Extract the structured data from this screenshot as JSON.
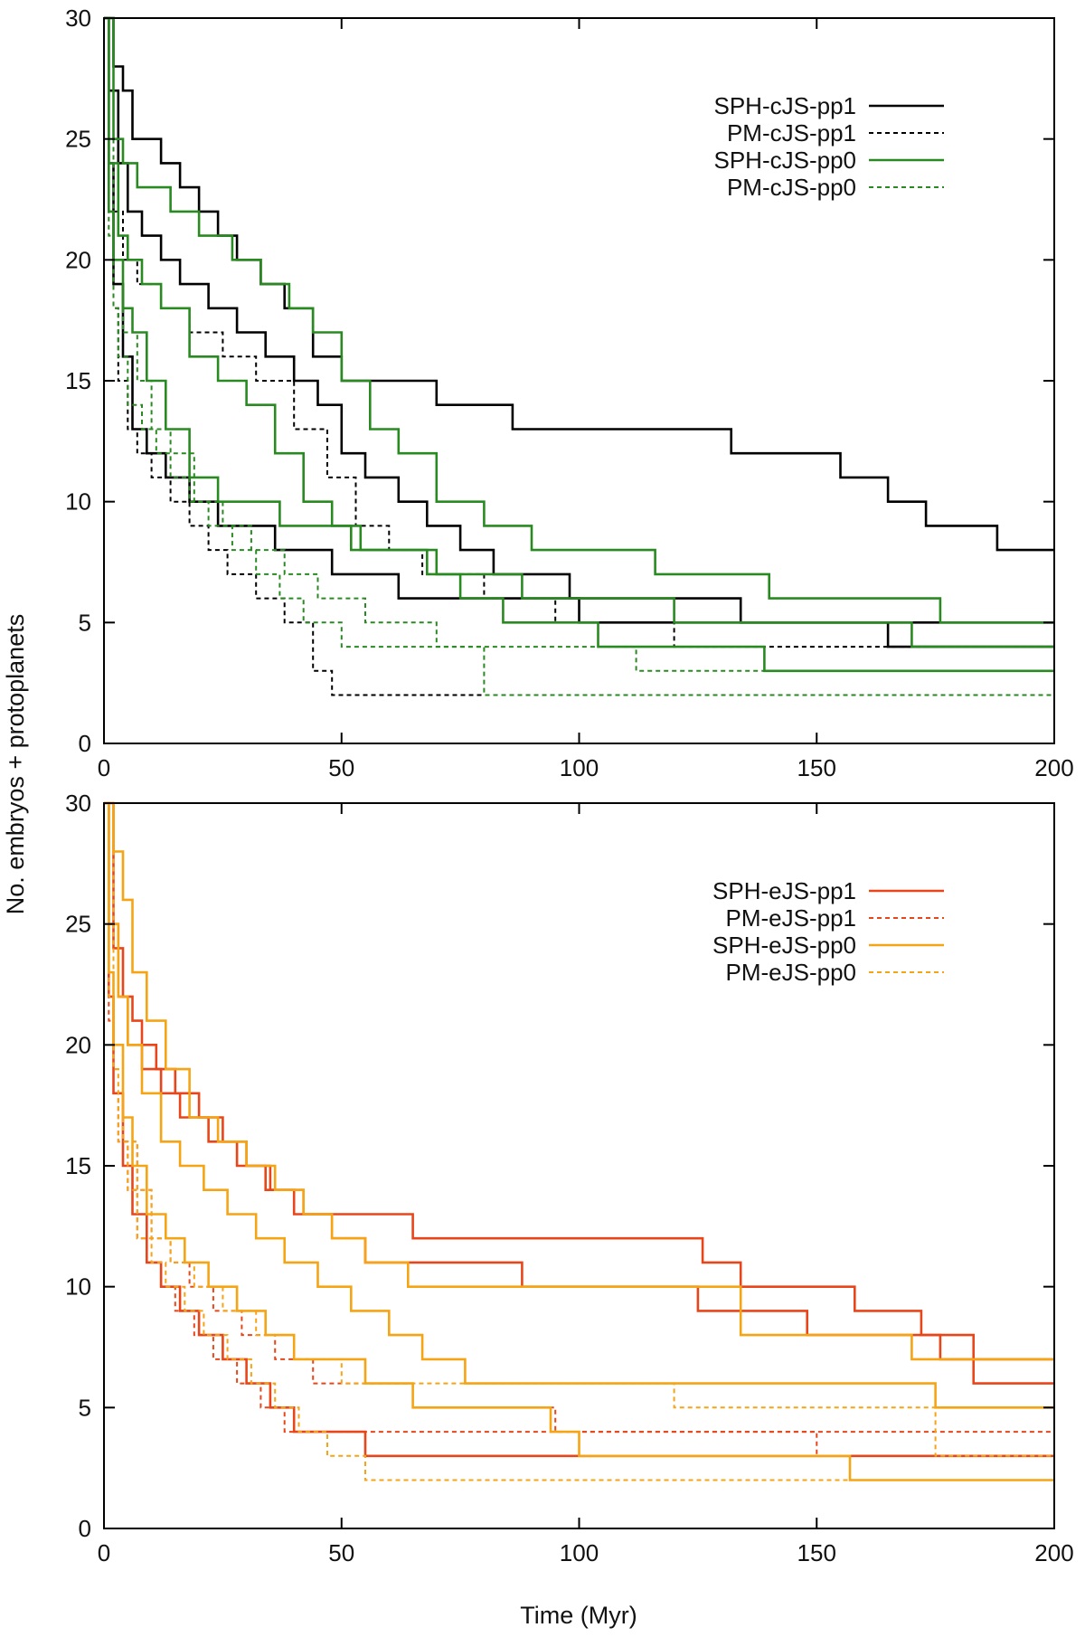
{
  "figure": {
    "ylabel": "No. embryos + protoplanets",
    "xlabel": "Time (Myr)"
  },
  "chart_data": [
    {
      "type": "line",
      "title": "",
      "xlabel": "",
      "ylabel": "No. embryos + protoplanets",
      "xlim": [
        0,
        200
      ],
      "ylim": [
        0,
        30
      ],
      "xticks": [
        0,
        50,
        100,
        150,
        200
      ],
      "yticks": [
        0,
        5,
        10,
        15,
        20,
        25,
        30
      ],
      "grid": false,
      "legend_position": "top-right",
      "legend": [
        {
          "label": "SPH-cJS-pp1",
          "color": "#000000",
          "dashed": false
        },
        {
          "label": "PM-cJS-pp1",
          "color": "#000000",
          "dashed": true
        },
        {
          "label": "SPH-cJS-pp0",
          "color": "#2a8a22",
          "dashed": false
        },
        {
          "label": "PM-cJS-pp0",
          "color": "#2a8a22",
          "dashed": true
        }
      ],
      "series": [
        {
          "name": "SPH-cJS-pp1",
          "color": "#000000",
          "dashed": false,
          "x": [
            0,
            2,
            4,
            6,
            12,
            16,
            20,
            24,
            28,
            33,
            38,
            44,
            50,
            55,
            60,
            70,
            86,
            100,
            120,
            132,
            145,
            155,
            165,
            173,
            180,
            188,
            200
          ],
          "y": [
            30,
            28,
            27,
            25,
            24,
            23,
            22,
            21,
            20,
            19,
            18,
            16,
            15,
            15,
            15,
            14,
            13,
            13,
            13,
            12,
            12,
            11,
            10,
            9,
            9,
            8,
            8
          ]
        },
        {
          "name": "SPH-cJS-pp1",
          "color": "#000000",
          "dashed": false,
          "x": [
            0,
            1,
            3,
            5,
            8,
            12,
            16,
            22,
            28,
            34,
            40,
            45,
            50,
            55,
            62,
            68,
            75,
            82,
            98,
            110,
            120,
            134,
            140,
            150,
            165,
            175,
            186,
            200
          ],
          "y": [
            30,
            27,
            24,
            22,
            21,
            20,
            19,
            18,
            17,
            16,
            15,
            14,
            12,
            11,
            10,
            9,
            8,
            7,
            6,
            6,
            6,
            5,
            5,
            5,
            4,
            4,
            4,
            4
          ]
        },
        {
          "name": "SPH-cJS-pp1",
          "color": "#000000",
          "dashed": false,
          "x": [
            0,
            1,
            2,
            4,
            6,
            9,
            13,
            18,
            24,
            30,
            36,
            42,
            48,
            55,
            62,
            68,
            75,
            88,
            100,
            115,
            120,
            135,
            160,
            180,
            200
          ],
          "y": [
            30,
            24,
            19,
            16,
            13,
            12,
            11,
            10,
            9,
            9,
            8,
            8,
            7,
            7,
            6,
            6,
            6,
            6,
            5,
            5,
            5,
            5,
            5,
            5,
            5
          ]
        },
        {
          "name": "PM-cJS-pp1",
          "color": "#000000",
          "dashed": true,
          "x": [
            0,
            1,
            2,
            3,
            5,
            7,
            10,
            14,
            18,
            22,
            26,
            32,
            38,
            44,
            48,
            55,
            60,
            70,
            80,
            100,
            120,
            140,
            160,
            200
          ],
          "y": [
            30,
            22,
            18,
            15,
            13,
            12,
            11,
            10,
            9,
            8,
            7,
            6,
            5,
            3,
            2,
            2,
            2,
            2,
            2,
            2,
            2,
            2,
            2,
            2
          ]
        },
        {
          "name": "PM-cJS-pp1",
          "color": "#000000",
          "dashed": true,
          "x": [
            0,
            2,
            4,
            7,
            12,
            18,
            25,
            32,
            40,
            47,
            53,
            60,
            67,
            80,
            95,
            110,
            120,
            150,
            187,
            200
          ],
          "y": [
            30,
            22,
            20,
            19,
            18,
            17,
            16,
            15,
            13,
            11,
            9,
            8,
            7,
            6,
            5,
            5,
            4,
            4,
            4,
            4
          ]
        },
        {
          "name": "SPH-cJS-pp0",
          "color": "#2a8a22",
          "dashed": false,
          "x": [
            0,
            2,
            4,
            7,
            10,
            14,
            20,
            27,
            33,
            39,
            44,
            50,
            56,
            62,
            70,
            80,
            90,
            100,
            116,
            140,
            176,
            200
          ],
          "y": [
            30,
            25,
            24,
            23,
            23,
            22,
            21,
            20,
            19,
            18,
            17,
            15,
            13,
            12,
            10,
            9,
            8,
            8,
            7,
            6,
            5,
            5
          ]
        },
        {
          "name": "SPH-cJS-pp0",
          "color": "#2a8a22",
          "dashed": false,
          "x": [
            0,
            1,
            3,
            5,
            8,
            12,
            18,
            24,
            30,
            36,
            42,
            48,
            54,
            62,
            70,
            78,
            88,
            100,
            120,
            133,
            148,
            170,
            182,
            200
          ],
          "y": [
            30,
            24,
            21,
            20,
            19,
            18,
            16,
            15,
            14,
            12,
            10,
            9,
            8,
            8,
            7,
            7,
            6,
            6,
            5,
            5,
            5,
            4,
            4,
            4
          ]
        },
        {
          "name": "SPH-cJS-pp0",
          "color": "#2a8a22",
          "dashed": false,
          "x": [
            0,
            1,
            2,
            4,
            6,
            9,
            13,
            18,
            24,
            30,
            37,
            45,
            52,
            60,
            68,
            75,
            84,
            104,
            120,
            139,
            160,
            185,
            200
          ],
          "y": [
            30,
            22,
            20,
            18,
            17,
            15,
            13,
            11,
            10,
            10,
            9,
            9,
            8,
            8,
            7,
            6,
            5,
            4,
            4,
            3,
            3,
            3,
            3
          ]
        },
        {
          "name": "PM-cJS-pp0",
          "color": "#2a8a22",
          "dashed": true,
          "x": [
            0,
            1,
            2,
            3,
            5,
            8,
            11,
            14,
            18,
            22,
            27,
            32,
            37,
            42,
            50,
            60,
            72,
            80,
            100,
            120,
            160,
            200
          ],
          "y": [
            30,
            21,
            18,
            16,
            14,
            13,
            12,
            11,
            10,
            9,
            8,
            7,
            6,
            5,
            4,
            4,
            4,
            2,
            2,
            2,
            2,
            2
          ]
        },
        {
          "name": "PM-cJS-pp0",
          "color": "#2a8a22",
          "dashed": true,
          "x": [
            0,
            2,
            4,
            7,
            10,
            14,
            19,
            25,
            31,
            38,
            45,
            55,
            70,
            90,
            112,
            140,
            170,
            200
          ],
          "y": [
            30,
            20,
            17,
            15,
            13,
            12,
            10,
            9,
            8,
            7,
            6,
            5,
            4,
            4,
            3,
            3,
            3,
            3
          ]
        }
      ]
    },
    {
      "type": "line",
      "title": "",
      "xlabel": "Time (Myr)",
      "ylabel": "No. embryos + protoplanets",
      "xlim": [
        0,
        200
      ],
      "ylim": [
        0,
        30
      ],
      "xticks": [
        0,
        50,
        100,
        150,
        200
      ],
      "yticks": [
        0,
        5,
        10,
        15,
        20,
        25,
        30
      ],
      "grid": false,
      "legend_position": "top-right",
      "legend": [
        {
          "label": "SPH-eJS-pp1",
          "color": "#e8461a",
          "dashed": false
        },
        {
          "label": "PM-eJS-pp1",
          "color": "#e8461a",
          "dashed": true
        },
        {
          "label": "SPH-eJS-pp0",
          "color": "#f5a414",
          "dashed": false
        },
        {
          "label": "PM-eJS-pp0",
          "color": "#f5a414",
          "dashed": true
        }
      ],
      "series": [
        {
          "name": "SPH-eJS-pp1",
          "color": "#e8461a",
          "dashed": false,
          "x": [
            0,
            2,
            4,
            6,
            8,
            11,
            15,
            20,
            25,
            30,
            35,
            42,
            52,
            65,
            75,
            95,
            110,
            126,
            134,
            158,
            172,
            183,
            200
          ],
          "y": [
            30,
            24,
            22,
            21,
            20,
            19,
            18,
            17,
            16,
            15,
            14,
            13,
            13,
            12,
            12,
            12,
            12,
            11,
            10,
            9,
            8,
            6,
            6
          ]
        },
        {
          "name": "SPH-eJS-pp1",
          "color": "#e8461a",
          "dashed": false,
          "x": [
            0,
            1,
            3,
            5,
            8,
            12,
            16,
            22,
            28,
            34,
            40,
            48,
            55,
            62,
            70,
            88,
            100,
            118,
            125,
            148,
            176,
            200
          ],
          "y": [
            30,
            25,
            22,
            20,
            19,
            18,
            17,
            16,
            15,
            14,
            13,
            12,
            11,
            11,
            11,
            10,
            10,
            10,
            9,
            8,
            7,
            7
          ]
        },
        {
          "name": "SPH-eJS-pp1",
          "color": "#e8461a",
          "dashed": false,
          "x": [
            0,
            1,
            2,
            4,
            6,
            9,
            12,
            16,
            20,
            25,
            30,
            35,
            40,
            48,
            55,
            65,
            75,
            95,
            128,
            148,
            170,
            200
          ],
          "y": [
            30,
            22,
            18,
            15,
            13,
            11,
            10,
            9,
            8,
            7,
            6,
            5,
            4,
            4,
            3,
            3,
            3,
            3,
            3,
            3,
            3,
            3
          ]
        },
        {
          "name": "PM-eJS-pp1",
          "color": "#e8461a",
          "dashed": true,
          "x": [
            0,
            1,
            2,
            3,
            5,
            7,
            9,
            12,
            15,
            19,
            23,
            28,
            33,
            38,
            44,
            52,
            62,
            80,
            100,
            130,
            160,
            200
          ],
          "y": [
            30,
            21,
            18,
            16,
            14,
            12,
            11,
            10,
            9,
            8,
            7,
            6,
            5,
            4,
            4,
            4,
            4,
            4,
            4,
            4,
            4,
            4
          ]
        },
        {
          "name": "PM-eJS-pp1",
          "color": "#e8461a",
          "dashed": true,
          "x": [
            0,
            2,
            4,
            7,
            10,
            14,
            18,
            23,
            29,
            36,
            44,
            55,
            65,
            80,
            95,
            120,
            150,
            185,
            200
          ],
          "y": [
            30,
            20,
            16,
            14,
            12,
            11,
            10,
            9,
            8,
            7,
            6,
            6,
            5,
            5,
            4,
            4,
            3,
            3,
            3
          ]
        },
        {
          "name": "SPH-eJS-pp0",
          "color": "#f5a414",
          "dashed": false,
          "x": [
            0,
            2,
            4,
            6,
            9,
            13,
            18,
            24,
            30,
            36,
            42,
            48,
            55,
            64,
            72,
            84,
            100,
            120,
            134,
            150,
            170,
            200
          ],
          "y": [
            30,
            28,
            26,
            23,
            21,
            19,
            17,
            16,
            15,
            14,
            13,
            12,
            11,
            10,
            10,
            10,
            10,
            10,
            8,
            8,
            7,
            7
          ]
        },
        {
          "name": "SPH-eJS-pp0",
          "color": "#f5a414",
          "dashed": false,
          "x": [
            0,
            1,
            3,
            5,
            8,
            12,
            16,
            21,
            26,
            32,
            38,
            45,
            52,
            60,
            67,
            76,
            88,
            100,
            111,
            130,
            156,
            175,
            200
          ],
          "y": [
            30,
            25,
            22,
            20,
            18,
            16,
            15,
            14,
            13,
            12,
            11,
            10,
            9,
            8,
            7,
            6,
            6,
            6,
            6,
            6,
            6,
            5,
            5
          ]
        },
        {
          "name": "SPH-eJS-pp0",
          "color": "#f5a414",
          "dashed": false,
          "x": [
            0,
            1,
            2,
            4,
            6,
            9,
            13,
            17,
            22,
            28,
            34,
            40,
            47,
            55,
            65,
            75,
            94,
            100,
            120,
            140,
            157,
            175,
            200
          ],
          "y": [
            30,
            23,
            20,
            17,
            15,
            13,
            12,
            11,
            10,
            9,
            8,
            7,
            7,
            6,
            5,
            5,
            4,
            3,
            3,
            3,
            2,
            2,
            2
          ]
        },
        {
          "name": "PM-eJS-pp0",
          "color": "#f5a414",
          "dashed": true,
          "x": [
            0,
            1,
            2,
            3,
            5,
            7,
            10,
            13,
            17,
            21,
            26,
            31,
            36,
            41,
            47,
            55,
            70,
            100,
            130,
            160,
            200
          ],
          "y": [
            30,
            22,
            19,
            16,
            14,
            12,
            11,
            10,
            9,
            8,
            7,
            6,
            5,
            4,
            3,
            2,
            2,
            2,
            2,
            2,
            2
          ]
        },
        {
          "name": "PM-eJS-pp0",
          "color": "#f5a414",
          "dashed": true,
          "x": [
            0,
            2,
            4,
            7,
            10,
            14,
            19,
            25,
            32,
            40,
            50,
            60,
            75,
            90,
            105,
            120,
            140,
            161,
            175,
            200
          ],
          "y": [
            30,
            19,
            16,
            14,
            12,
            11,
            10,
            9,
            8,
            7,
            6,
            6,
            6,
            6,
            6,
            5,
            5,
            5,
            3,
            3
          ]
        }
      ]
    }
  ]
}
